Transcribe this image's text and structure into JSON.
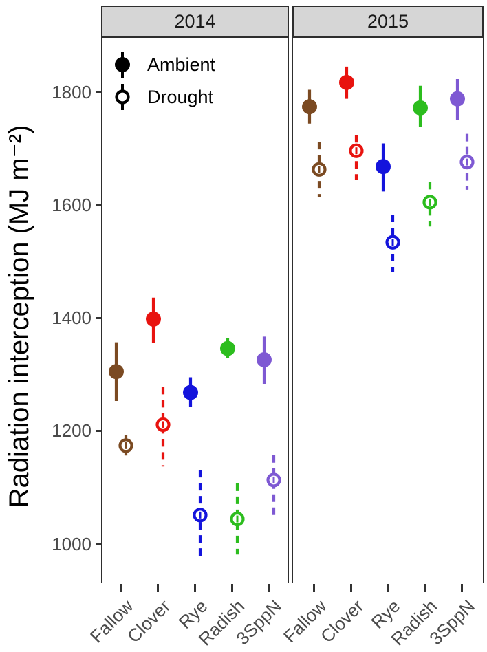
{
  "figure": {
    "legend": {
      "items": [
        {
          "label": "Ambient",
          "style": "filled-circle-with-line"
        },
        {
          "label": "Drought",
          "style": "open-circle-with-dashed-line"
        }
      ]
    },
    "colors": {
      "strip_background": "#d6d6d6",
      "panel_border": "#2e2e2e",
      "axis_text": "#4a4a4a",
      "legend_key": "#000000"
    }
  },
  "chart_data": {
    "type": "scatter",
    "subtype": "pointrange-dodged-faceted",
    "title": "",
    "xlabel": "",
    "ylabel": "Radiation interception (MJ m⁻²)",
    "facets": [
      "2014",
      "2015"
    ],
    "categories": [
      "Fallow",
      "Clover",
      "Rye",
      "Radish",
      "3SppN"
    ],
    "yticks": [
      1000,
      1200,
      1400,
      1600,
      1800
    ],
    "ylim": [
      930,
      1897
    ],
    "grid": "off",
    "legend_position": "top-left-inside-first-panel",
    "category_colors": {
      "Fallow": "#7b4a22",
      "Clover": "#e8130f",
      "Rye": "#1414dc",
      "Radish": "#2cbd1e",
      "3SppN": "#7e59d3"
    },
    "series": [
      {
        "facet": "2014",
        "treatment": "Ambient",
        "marker": "filled",
        "errorbar": "solid",
        "values": [
          1306,
          1399,
          1269,
          1347,
          1327
        ],
        "ymin": [
          1254,
          1357,
          1243,
          1330,
          1284
        ],
        "ymax": [
          1358,
          1437,
          1296,
          1365,
          1368
        ]
      },
      {
        "facet": "2014",
        "treatment": "Drought",
        "marker": "open",
        "errorbar": "dashed",
        "values": [
          1175,
          1212,
          1052,
          1045,
          1114
        ],
        "ymin": [
          1150,
          1138,
          974,
          982,
          1049
        ],
        "ymax": [
          1194,
          1279,
          1132,
          1108,
          1158
        ]
      },
      {
        "facet": "2015",
        "treatment": "Ambient",
        "marker": "filled",
        "errorbar": "solid",
        "values": [
          1775,
          1818,
          1669,
          1773,
          1789
        ],
        "ymin": [
          1745,
          1789,
          1625,
          1739,
          1751
        ],
        "ymax": [
          1805,
          1846,
          1710,
          1812,
          1824
        ]
      },
      {
        "facet": "2015",
        "treatment": "Drought",
        "marker": "open",
        "errorbar": "dashed",
        "values": [
          1664,
          1697,
          1535,
          1606,
          1677
        ],
        "ymin": [
          1615,
          1646,
          1482,
          1563,
          1628
        ],
        "ymax": [
          1713,
          1725,
          1584,
          1642,
          1727
        ]
      }
    ]
  }
}
